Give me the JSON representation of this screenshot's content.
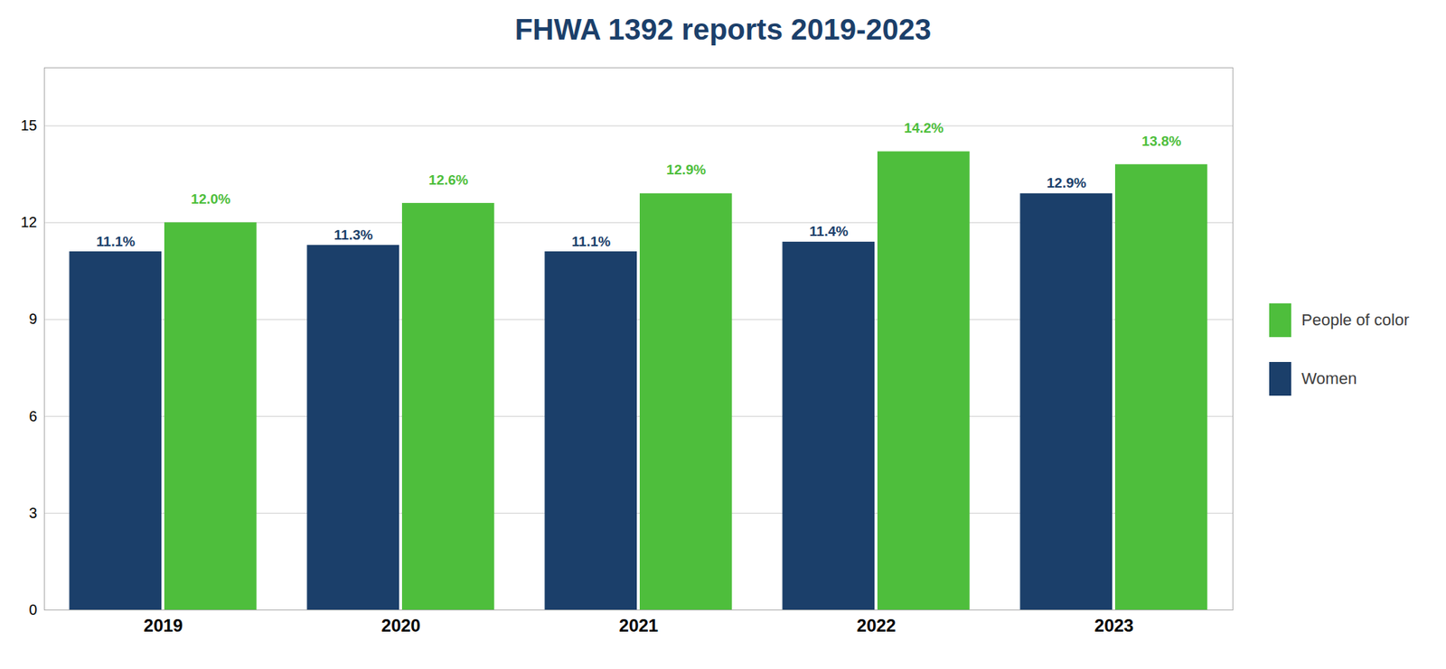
{
  "chart_data": {
    "type": "bar",
    "title": "FHWA 1392 reports 2019-2023",
    "categories": [
      "2019",
      "2020",
      "2021",
      "2022",
      "2023"
    ],
    "series": [
      {
        "name": "People of color",
        "color": "#4ebe3c",
        "values": [
          12.0,
          12.6,
          12.9,
          14.2,
          13.8
        ],
        "value_labels": [
          "12.0%",
          "12.6%",
          "12.9%",
          "14.2%",
          "13.8%"
        ]
      },
      {
        "name": "Women",
        "color": "#1b3f6a",
        "values": [
          11.1,
          11.3,
          11.1,
          11.4,
          12.9
        ],
        "value_labels": [
          "11.1%",
          "11.3%",
          "11.1%",
          "11.4%",
          "12.9%"
        ]
      }
    ],
    "ylim": [
      0,
      16.8
    ],
    "yticks": [
      0,
      3,
      6,
      9,
      12,
      15
    ],
    "grid": true,
    "legend": "right",
    "data_labels": true
  }
}
